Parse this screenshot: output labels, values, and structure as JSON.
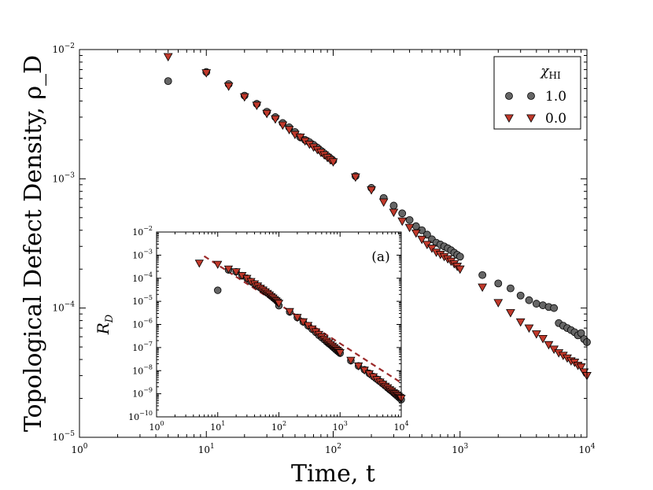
{
  "chart_data": [
    {
      "name": "main",
      "type": "scatter",
      "xscale": "log",
      "yscale": "log",
      "title": "",
      "xlabel": "Time, t",
      "ylabel": "Topological Defect Density, ρ_D",
      "xlim": [
        1,
        10000
      ],
      "ylim": [
        1e-05,
        0.01
      ],
      "xticks": [
        {
          "value": 1,
          "base": "10",
          "exp": "0"
        },
        {
          "value": 10,
          "base": "10",
          "exp": "1"
        },
        {
          "value": 100,
          "base": "10",
          "exp": "2"
        },
        {
          "value": 1000,
          "base": "10",
          "exp": "3"
        },
        {
          "value": 10000,
          "base": "10",
          "exp": "4"
        }
      ],
      "yticks": [
        {
          "value": 1e-05,
          "base": "10",
          "exp": "−5"
        },
        {
          "value": 0.0001,
          "base": "10",
          "exp": "−4"
        },
        {
          "value": 0.001,
          "base": "10",
          "exp": "−3"
        },
        {
          "value": 0.01,
          "base": "10",
          "exp": "−2"
        }
      ],
      "legend": {
        "title_symbol": "χ",
        "title_sub": "HI",
        "placement": "top-right",
        "entries": [
          "1.0",
          "0.0"
        ]
      },
      "series": [
        {
          "name": "1.0",
          "marker": "circle",
          "color": "#666666",
          "x": [
            5,
            10,
            15,
            20,
            25,
            30,
            35,
            40,
            45,
            50,
            55,
            60,
            65,
            70,
            75,
            80,
            85,
            90,
            95,
            100,
            150,
            200,
            250,
            300,
            350,
            400,
            450,
            500,
            550,
            600,
            650,
            700,
            750,
            800,
            850,
            900,
            950,
            1000,
            1500,
            2000,
            2500,
            3000,
            3500,
            4000,
            4500,
            5000,
            5500,
            6000,
            6500,
            7000,
            7500,
            8000,
            8500,
            9000,
            9500,
            10000
          ],
          "y": [
            0.0057,
            0.0067,
            0.0054,
            0.0044,
            0.0038,
            0.0033,
            0.003,
            0.0027,
            0.0025,
            0.0023,
            0.0021,
            0.002,
            0.00192,
            0.00183,
            0.00174,
            0.00165,
            0.00157,
            0.0015,
            0.00144,
            0.00138,
            0.00105,
            0.00085,
            0.00071,
            0.00062,
            0.00054,
            0.00048,
            0.00043,
            0.0004,
            0.00037,
            0.00034,
            0.00032,
            0.00031,
            0.0003,
            0.00029,
            0.00028,
            0.000268,
            0.000258,
            0.00025,
            0.00018,
            0.000155,
            0.000142,
            0.000125,
            0.000115,
            0.000108,
            0.000105,
            0.000102,
            0.0001,
            7.65e-05,
            7.3e-05,
            7e-05,
            6.75e-05,
            6.5e-05,
            6.15e-05,
            6.4e-05,
            5.75e-05,
            5.45e-05
          ]
        },
        {
          "name": "0.0",
          "marker": "triangle-down",
          "color": "#c0392b",
          "x": [
            5,
            10,
            15,
            20,
            25,
            30,
            35,
            40,
            45,
            50,
            55,
            60,
            65,
            70,
            75,
            80,
            85,
            90,
            95,
            100,
            150,
            200,
            250,
            300,
            350,
            400,
            450,
            500,
            550,
            600,
            650,
            700,
            750,
            800,
            850,
            900,
            950,
            1000,
            1500,
            2000,
            2500,
            3000,
            3500,
            4000,
            4500,
            5000,
            5500,
            6000,
            6500,
            7000,
            7500,
            8000,
            8500,
            9000,
            9500,
            10000
          ],
          "y": [
            0.0088,
            0.0066,
            0.0052,
            0.0043,
            0.0037,
            0.0032,
            0.0029,
            0.0026,
            0.0024,
            0.0022,
            0.0021,
            0.00196,
            0.00185,
            0.00176,
            0.00168,
            0.0016,
            0.00153,
            0.00146,
            0.0014,
            0.00135,
            0.00103,
            0.00082,
            0.00066,
            0.00055,
            0.00047,
            0.00042,
            0.00038,
            0.00034,
            0.00031,
            0.00029,
            0.00027,
            0.00026,
            0.00025,
            0.00024,
            0.00023,
            0.00022,
            0.00021,
            0.0002,
            0.000145,
            0.00011,
            9.2e-05,
            7.8e-05,
            7e-05,
            6.3e-05,
            5.8e-05,
            5.2e-05,
            4.8e-05,
            4.5e-05,
            4.3e-05,
            4.1e-05,
            3.9e-05,
            3.8e-05,
            3.6e-05,
            3.5e-05,
            3.2e-05,
            3e-05
          ]
        }
      ]
    },
    {
      "name": "inset",
      "type": "scatter",
      "xscale": "log",
      "yscale": "log",
      "annotation": "(a)",
      "ylabel_symbol": "R",
      "ylabel_sub": "D",
      "xlabel": "",
      "xlim": [
        1,
        10000
      ],
      "ylim": [
        1e-10,
        0.01
      ],
      "xticks": [
        {
          "value": 1,
          "base": "10",
          "exp": "0"
        },
        {
          "value": 10,
          "base": "10",
          "exp": "1"
        },
        {
          "value": 100,
          "base": "10",
          "exp": "2"
        },
        {
          "value": 1000,
          "base": "10",
          "exp": "3"
        },
        {
          "value": 10000,
          "base": "10",
          "exp": "4"
        }
      ],
      "yticks": [
        {
          "value": 1e-10,
          "base": "10",
          "exp": "−10"
        },
        {
          "value": 1e-09,
          "base": "10",
          "exp": "−9"
        },
        {
          "value": 1e-08,
          "base": "10",
          "exp": "−8"
        },
        {
          "value": 1e-07,
          "base": "10",
          "exp": "−7"
        },
        {
          "value": 1e-06,
          "base": "10",
          "exp": "−6"
        },
        {
          "value": 1e-05,
          "base": "10",
          "exp": "−5"
        },
        {
          "value": 0.0001,
          "base": "10",
          "exp": "−4"
        },
        {
          "value": 0.001,
          "base": "10",
          "exp": "−3"
        },
        {
          "value": 0.01,
          "base": "10",
          "exp": "−2"
        }
      ],
      "fit_line": {
        "style": "dashed",
        "color": "#9b2a2a",
        "x": [
          6,
          10000
        ],
        "y": [
          0.0009,
          3e-09
        ]
      },
      "series": [
        {
          "name": "1.0",
          "marker": "circle",
          "color": "#666666",
          "x": [
            10,
            15,
            20,
            25,
            30,
            35,
            40,
            45,
            50,
            55,
            60,
            65,
            70,
            75,
            80,
            85,
            90,
            95,
            100,
            150,
            200,
            250,
            300,
            350,
            400,
            450,
            500,
            550,
            600,
            650,
            700,
            750,
            800,
            850,
            900,
            950,
            1000,
            1500,
            2000,
            2500,
            3000,
            3500,
            4000,
            4500,
            5000,
            5500,
            6000,
            6500,
            7000,
            7500,
            8000,
            8500,
            9000,
            9500,
            10000
          ],
          "y": [
            3e-05,
            0.00023,
            0.00019,
            0.00013,
            0.0001,
            7.2e-05,
            5.7e-05,
            4.6e-05,
            3.8e-05,
            3.2e-05,
            2.7e-05,
            2.3e-05,
            2e-05,
            1.7e-05,
            1.5e-05,
            1.3e-05,
            1.15e-05,
            1e-05,
            6.5e-06,
            3.5e-06,
            2e-06,
            1.3e-06,
            8.8e-07,
            6.2e-07,
            4.6e-07,
            3.4e-07,
            2.7e-07,
            2.2e-07,
            1.8e-07,
            1.5e-07,
            1.3e-07,
            1.1e-07,
            9.5e-08,
            8.2e-08,
            7.2e-08,
            6.4e-08,
            5.7e-08,
            2.7e-08,
            1.6e-08,
            1.1e-08,
            7.6e-09,
            5.6e-09,
            4.3e-09,
            3.4e-09,
            2.7e-09,
            2.2e-09,
            1.8e-09,
            1.5e-09,
            1.3e-09,
            1.1e-09,
            9.5e-10,
            8.3e-10,
            7.2e-10,
            6.4e-10,
            5.6e-10
          ]
        },
        {
          "name": "0.0",
          "marker": "triangle-down",
          "color": "#c0392b",
          "x": [
            5,
            10,
            15,
            20,
            25,
            30,
            35,
            40,
            45,
            50,
            55,
            60,
            65,
            70,
            75,
            80,
            85,
            90,
            95,
            100,
            150,
            200,
            250,
            300,
            350,
            400,
            450,
            500,
            550,
            600,
            650,
            700,
            750,
            800,
            850,
            900,
            950,
            1000,
            1500,
            2000,
            2500,
            3000,
            3500,
            4000,
            4500,
            5000,
            5500,
            6000,
            6500,
            7000,
            7500,
            8000,
            8500,
            9000,
            9500,
            10000
          ],
          "y": [
            0.00045,
            0.0004,
            0.00025,
            0.00019,
            0.00013,
            9.8e-05,
            7.2e-05,
            5.7e-05,
            4.6e-05,
            3.7e-05,
            3.1e-05,
            2.6e-05,
            2.2e-05,
            1.9e-05,
            1.6e-05,
            1.4e-05,
            1.2e-05,
            1.05e-05,
            9.3e-06,
            8.2e-06,
            3.6e-06,
            2e-06,
            1.3e-06,
            9e-07,
            6.4e-07,
            4.8e-07,
            3.7e-07,
            2.9e-07,
            2.3e-07,
            1.9e-07,
            1.6e-07,
            1.35e-07,
            1.15e-07,
            9.9e-08,
            8.6e-08,
            7.6e-08,
            6.7e-08,
            6e-08,
            2.8e-08,
            1.6e-08,
            1.05e-08,
            7.3e-09,
            5.4e-09,
            4.1e-09,
            3.2e-09,
            2.6e-09,
            2.1e-09,
            1.8e-09,
            1.5e-09,
            1.3e-09,
            1.1e-09,
            1e-09,
            8.8e-10,
            7.8e-10,
            7e-10,
            6.3e-10
          ]
        }
      ]
    }
  ]
}
